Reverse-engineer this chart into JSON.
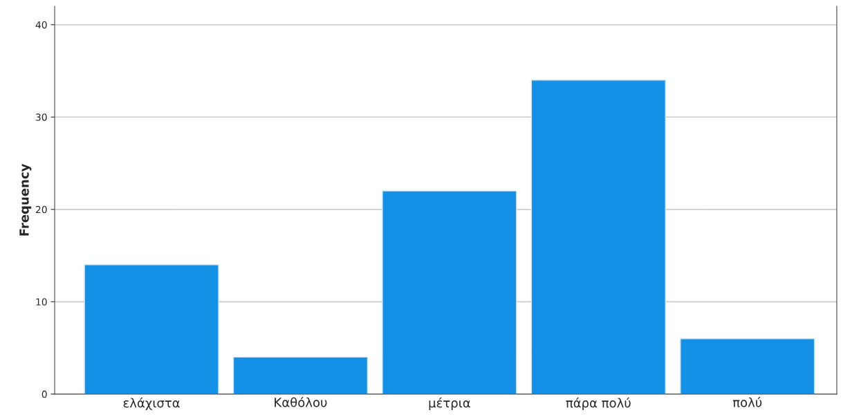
{
  "chart_data": {
    "type": "bar",
    "ylabel": "Frequency",
    "categories": [
      "ελάχιστα",
      "Καθόλου",
      "μέτρια",
      "πάρα πολύ",
      "πολύ"
    ],
    "values": [
      14,
      4,
      22,
      34,
      6
    ],
    "color": "#1491e6",
    "ylim": [
      0,
      42
    ],
    "yticks": [
      0,
      10,
      20,
      30,
      40
    ],
    "grid": "y"
  }
}
